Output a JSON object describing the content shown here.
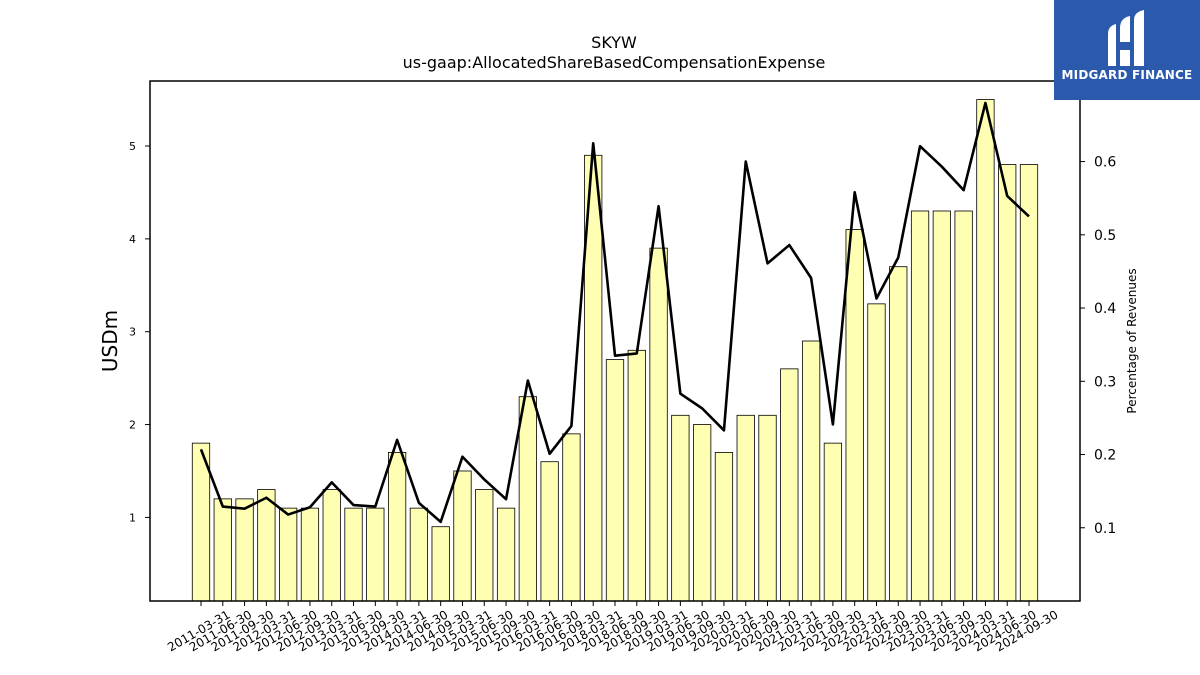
{
  "chart_data": {
    "type": "bar",
    "title": "SKYW",
    "subtitle": "us-gaap:AllocatedShareBasedCompensationExpense",
    "ylabel": "USDm",
    "y2label": "Percentage of Revenues",
    "ylim": [
      0.1,
      5.7
    ],
    "y2lim": [
      0.0,
      0.71
    ],
    "yticks": [
      1,
      2,
      3,
      4,
      5
    ],
    "y2ticks": [
      0.1,
      0.2,
      0.3,
      0.4,
      0.5,
      0.6
    ],
    "bar_color": "#ffffb3",
    "line_color": "#000000",
    "categories": [
      "2011-03-31",
      "2011-06-30",
      "2011-09-30",
      "2012-03-31",
      "2012-06-30",
      "2012-09-30",
      "2013-03-31",
      "2013-06-30",
      "2013-09-30",
      "2014-03-31",
      "2014-06-30",
      "2014-09-30",
      "2015-03-31",
      "2015-06-30",
      "2015-09-30",
      "2016-03-31",
      "2016-06-30",
      "2016-09-30",
      "2018-03-31",
      "2018-06-30",
      "2018-09-30",
      "2019-03-31",
      "2019-06-30",
      "2019-09-30",
      "2020-03-31",
      "2020-06-30",
      "2020-09-30",
      "2021-03-31",
      "2021-06-30",
      "2021-09-30",
      "2022-03-31",
      "2022-06-30",
      "2022-09-30",
      "2023-03-31",
      "2023-06-30",
      "2023-09-30",
      "2024-03-31",
      "2024-06-30",
      "2024-09-30"
    ],
    "series": [
      {
        "type": "bar",
        "axis": "left",
        "values": [
          1.8,
          1.2,
          1.2,
          1.3,
          1.1,
          1.1,
          1.3,
          1.1,
          1.1,
          1.7,
          1.1,
          0.9,
          1.5,
          1.3,
          1.1,
          2.3,
          1.6,
          1.9,
          4.9,
          2.7,
          2.8,
          3.9,
          2.1,
          2.0,
          1.7,
          2.1,
          2.1,
          2.6,
          2.9,
          1.8,
          4.1,
          3.3,
          3.7,
          4.3,
          4.3,
          4.3,
          5.5,
          4.8,
          4.8
        ]
      },
      {
        "type": "line",
        "axis": "right",
        "values": [
          0.207,
          0.129,
          0.126,
          0.141,
          0.118,
          0.128,
          0.162,
          0.131,
          0.129,
          0.22,
          0.134,
          0.108,
          0.197,
          0.166,
          0.139,
          0.301,
          0.201,
          0.239,
          0.625,
          0.335,
          0.338,
          0.539,
          0.283,
          0.263,
          0.233,
          0.6,
          0.461,
          0.486,
          0.441,
          0.241,
          0.558,
          0.413,
          0.469,
          0.621,
          0.593,
          0.561,
          0.68,
          0.553,
          0.525
        ]
      }
    ]
  },
  "logo": {
    "text": "MIDGARD FINANCE",
    "background": "#2b5aad"
  }
}
